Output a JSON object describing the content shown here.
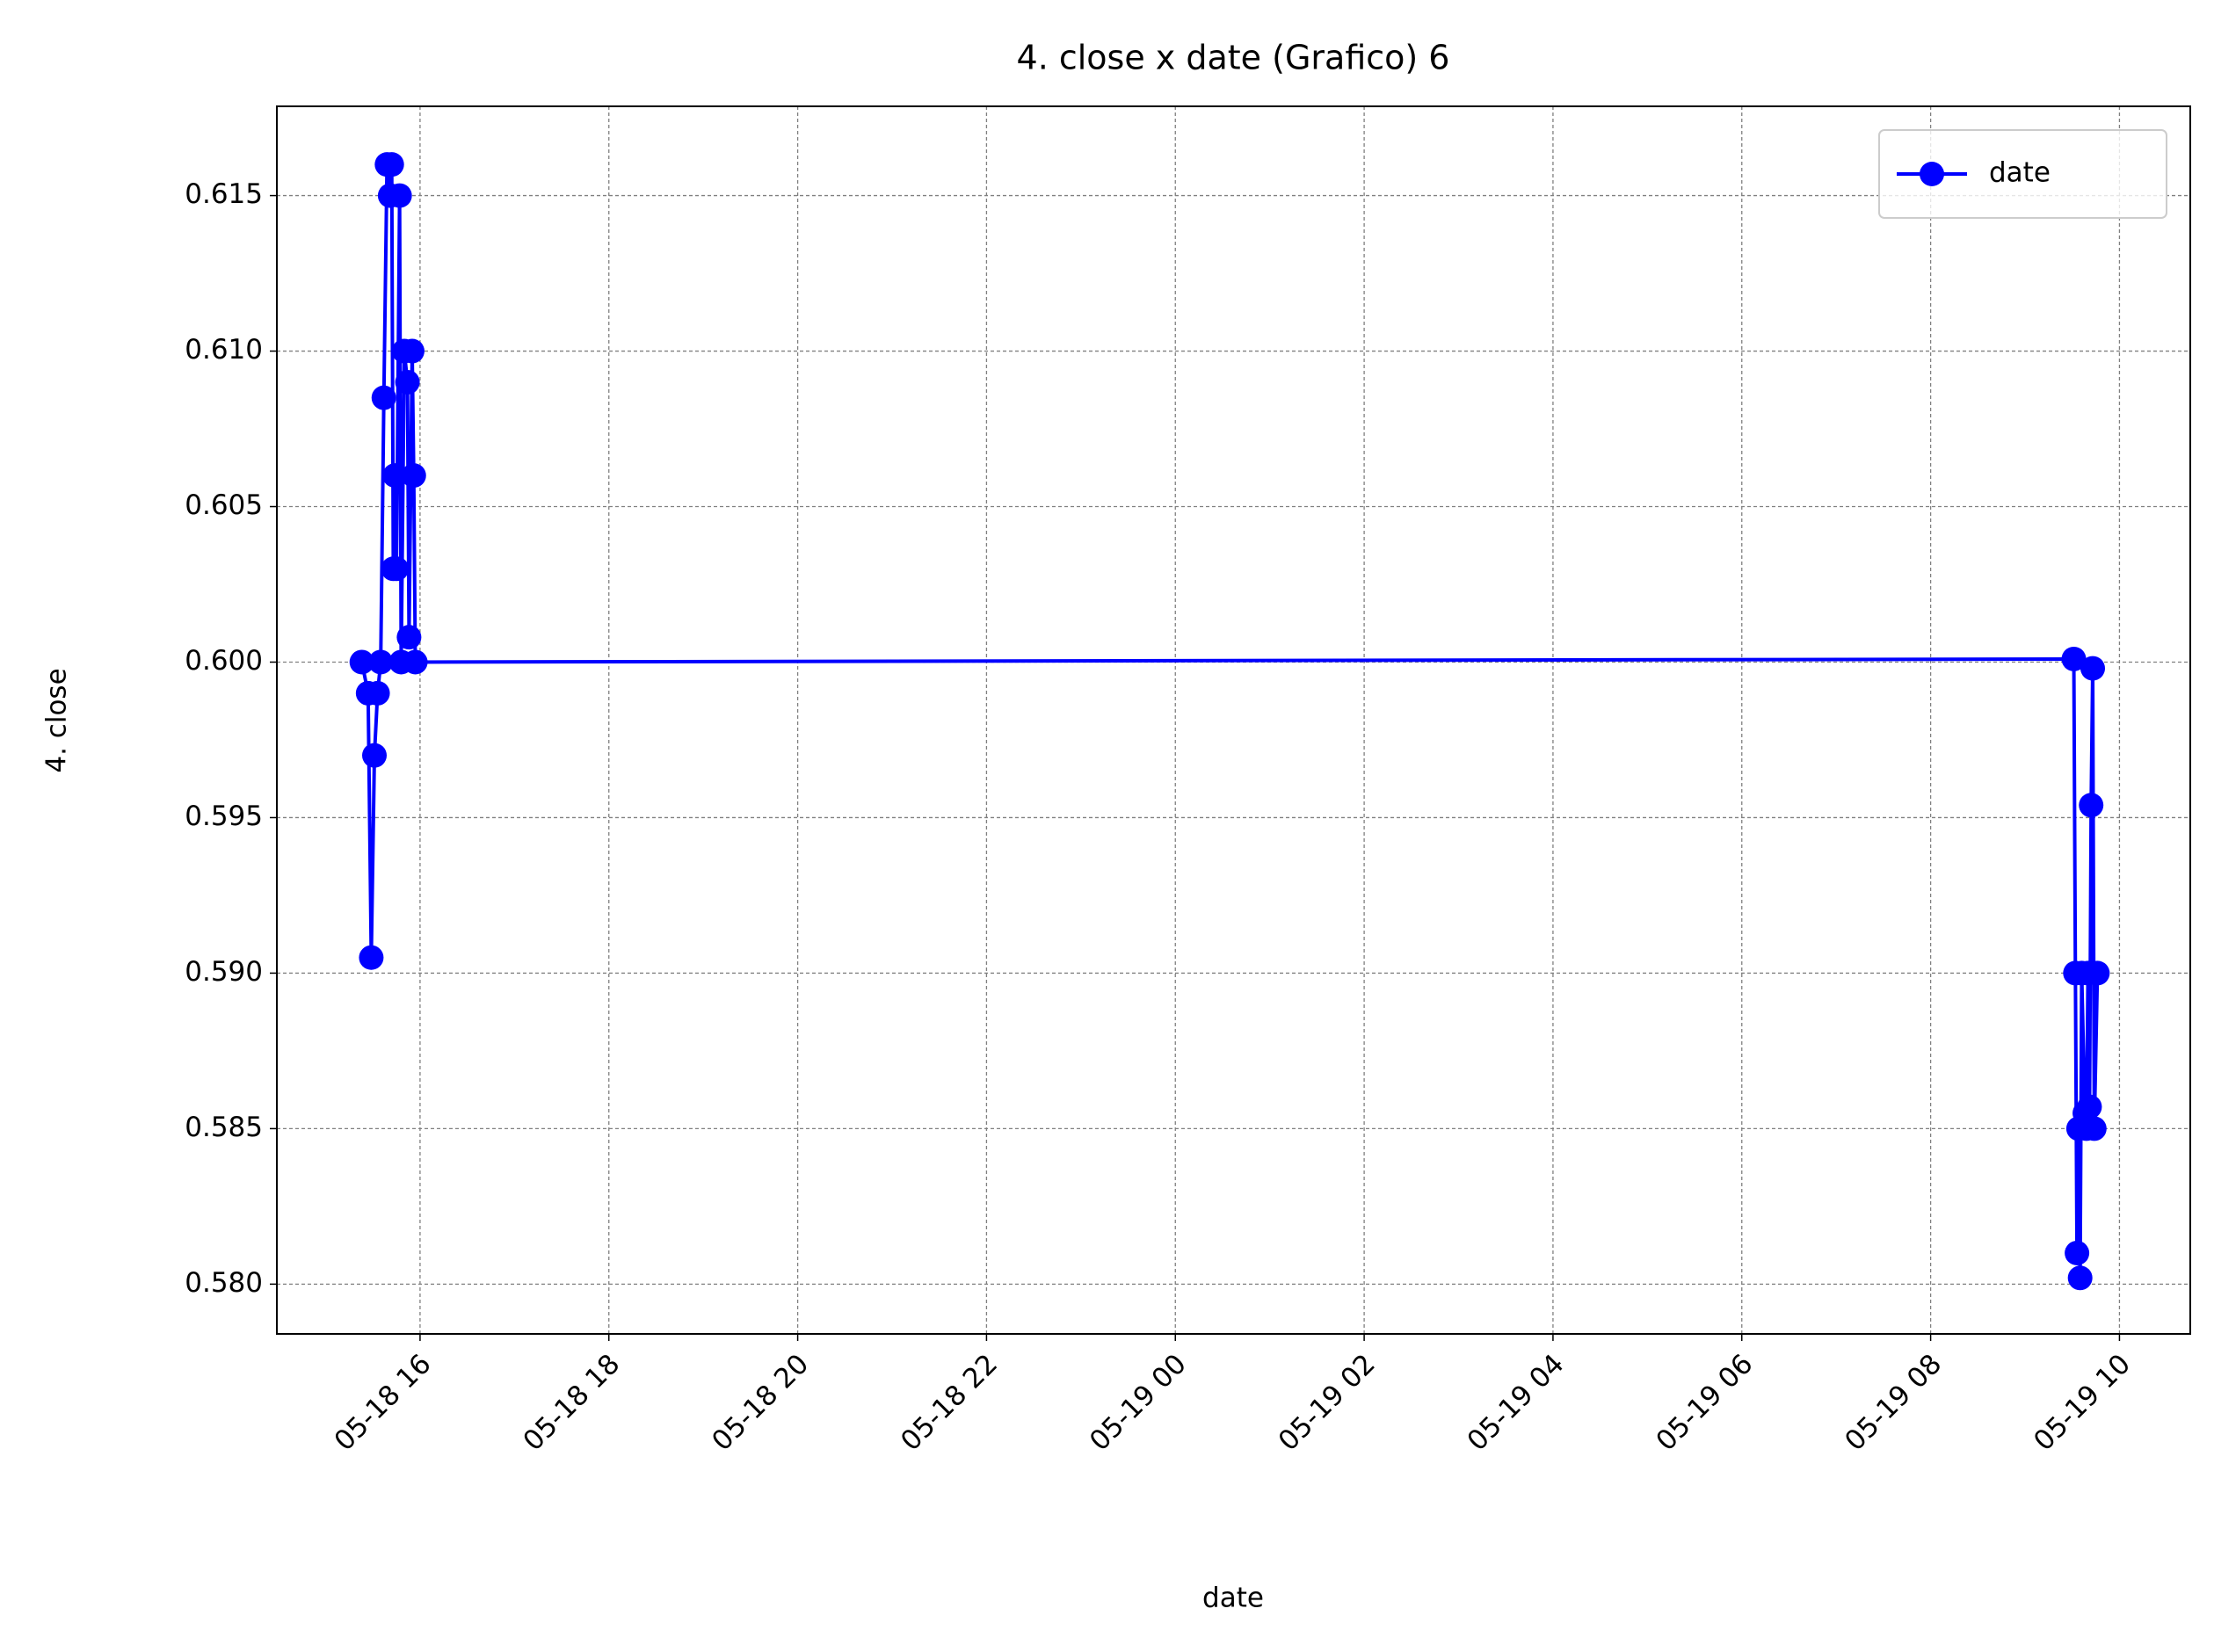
{
  "chart_data": {
    "type": "line",
    "title": "4. close x date (Grafico) 6",
    "xlabel": "date",
    "ylabel": "4. close",
    "x": [
      "05-18 15:23",
      "05-18 15:27",
      "05-18 15:29",
      "05-18 15:31",
      "05-18 15:33",
      "05-18 15:35",
      "05-18 15:37",
      "05-18 15:39",
      "05-18 15:41",
      "05-18 15:42",
      "05-18 15:43",
      "05-18 15:44",
      "05-18 15:45",
      "05-18 15:47",
      "05-18 15:48",
      "05-18 15:50",
      "05-18 15:52",
      "05-18 15:53",
      "05-18 15:55",
      "05-18 15:56",
      "05-18 15:57",
      "05-19 09:31",
      "05-19 09:32",
      "05-19 09:33",
      "05-19 09:34",
      "05-19 09:35",
      "05-19 09:36",
      "05-19 09:38",
      "05-19 09:39",
      "05-19 09:40",
      "05-19 09:41",
      "05-19 09:42",
      "05-19 09:43",
      "05-19 09:44",
      "05-19 09:46"
    ],
    "series": [
      {
        "name": "date",
        "color": "blue",
        "values": [
          0.6,
          0.599,
          0.5905,
          0.597,
          0.599,
          0.6,
          0.6085,
          0.616,
          0.615,
          0.616,
          0.603,
          0.606,
          0.603,
          0.615,
          0.6,
          0.61,
          0.609,
          0.6008,
          0.61,
          0.606,
          0.6,
          0.6001,
          0.59,
          0.581,
          0.585,
          0.5802,
          0.59,
          0.5855,
          0.585,
          0.59,
          0.5857,
          0.5954,
          0.5998,
          0.585,
          0.59
        ]
      }
    ],
    "xlim": [
      "05-18 14:29",
      "05-19 10:45"
    ],
    "xticks": [
      {
        "value": "05-18 16:00",
        "label": "05-18 16"
      },
      {
        "value": "05-18 18:00",
        "label": "05-18 18"
      },
      {
        "value": "05-18 20:00",
        "label": "05-18 20"
      },
      {
        "value": "05-18 22:00",
        "label": "05-18 22"
      },
      {
        "value": "05-19 00:00",
        "label": "05-19 00"
      },
      {
        "value": "05-19 02:00",
        "label": "05-19 02"
      },
      {
        "value": "05-19 04:00",
        "label": "05-19 04"
      },
      {
        "value": "05-19 06:00",
        "label": "05-19 06"
      },
      {
        "value": "05-19 08:00",
        "label": "05-19 08"
      },
      {
        "value": "05-19 10:00",
        "label": "05-19 10"
      }
    ],
    "ylim": [
      0.5784,
      0.61787
    ],
    "yticks": [
      {
        "value": 0.58,
        "label": "0.580"
      },
      0.585,
      {
        "value": 0.59,
        "label": "0.590"
      },
      0.595,
      {
        "value": 0.6,
        "label": "0.600"
      },
      0.605,
      {
        "value": 0.61,
        "label": "0.610"
      },
      0.615
    ],
    "grid": true,
    "legend": "upper right"
  }
}
